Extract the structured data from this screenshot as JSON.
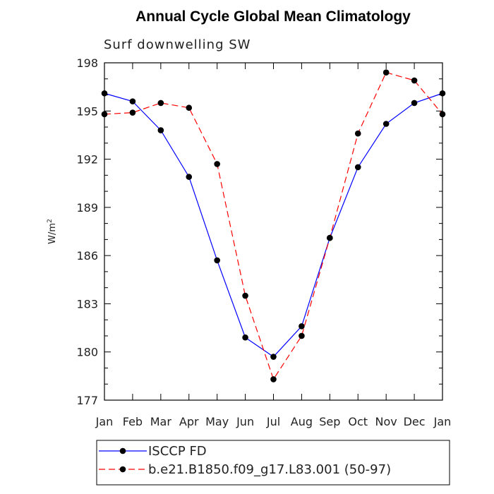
{
  "chart_data": {
    "type": "line",
    "title": "Annual Cycle Global Mean Climatology",
    "subtitle": "Surf downwelling SW",
    "ylabel": "W/m",
    "ylabel_superscript": "2",
    "xlabel": "",
    "categories": [
      "Jan",
      "Feb",
      "Mar",
      "Apr",
      "May",
      "Jun",
      "Jul",
      "Aug",
      "Sep",
      "Oct",
      "Nov",
      "Dec",
      "Jan"
    ],
    "ylim": [
      177,
      198
    ],
    "yticks": [
      177,
      180,
      183,
      186,
      189,
      192,
      195,
      198
    ],
    "grid": false,
    "legend_position": "bottom",
    "series": [
      {
        "name": "ISCCP FD",
        "color": "#0000ff",
        "line_style": "solid",
        "marker": "circle",
        "values": [
          196.1,
          195.6,
          193.8,
          190.9,
          185.7,
          180.9,
          179.7,
          181.6,
          187.1,
          191.5,
          194.2,
          195.5,
          196.1
        ]
      },
      {
        "name": "b.e21.B1850.f09_g17.L83.001 (50-97)",
        "color": "#ff0000",
        "line_style": "dashed",
        "marker": "circle",
        "values": [
          194.8,
          194.9,
          195.5,
          195.2,
          191.7,
          183.5,
          178.3,
          181.0,
          187.1,
          193.6,
          197.4,
          196.9,
          194.8
        ]
      }
    ]
  }
}
